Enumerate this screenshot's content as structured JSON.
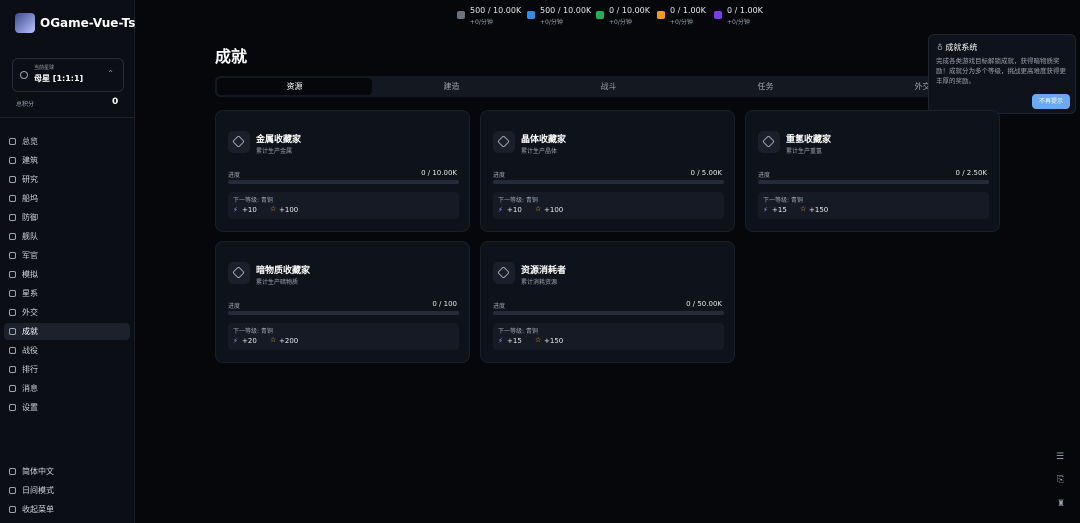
{
  "sidebar": {
    "logo": "OGame-Vue-Ts",
    "planet": {
      "label": "当前星球",
      "name": "母星 [1:1:1]"
    },
    "score": {
      "label": "总积分",
      "value": "0"
    },
    "nav": [
      "总览",
      "建筑",
      "研究",
      "船坞",
      "防御",
      "舰队",
      "军官",
      "模拟",
      "星系",
      "外交",
      "成就",
      "战役",
      "排行",
      "消息",
      "设置"
    ],
    "active": "成就",
    "footer": [
      "简体中文",
      "日间模式",
      "收起菜单"
    ]
  },
  "resources": [
    {
      "value": "500 / 10.00K",
      "rate": "+0/分钟",
      "color": "#6b7280"
    },
    {
      "value": "500 / 10.00K",
      "rate": "+0/分钟",
      "color": "#2f8fe8"
    },
    {
      "value": "0 / 10.00K",
      "rate": "+0/分钟",
      "color": "#1fae5a"
    },
    {
      "value": "0 / 1.00K",
      "rate": "+0/分钟",
      "color": "#f59e0b"
    },
    {
      "value": "0 / 1.00K",
      "rate": "+0/分钟",
      "color": "#7c3aed"
    }
  ],
  "page": {
    "title": "成就",
    "tabs": [
      "资源",
      "建造",
      "战斗",
      "任务",
      "外交"
    ],
    "cards": [
      {
        "name": "金属收藏家",
        "desc": "累计生产金属",
        "progress_label": "进度",
        "progress": "0 / 10.00K",
        "next": "下一等级: 青铜",
        "rewards": [
          "+10",
          "+100"
        ]
      },
      {
        "name": "晶体收藏家",
        "desc": "累计生产晶体",
        "progress_label": "进度",
        "progress": "0 / 5.00K",
        "next": "下一等级: 青铜",
        "rewards": [
          "+10",
          "+100"
        ]
      },
      {
        "name": "重氢收藏家",
        "desc": "累计生产重氢",
        "progress_label": "进度",
        "progress": "0 / 2.50K",
        "next": "下一等级: 青铜",
        "rewards": [
          "+15",
          "+150"
        ]
      },
      {
        "name": "暗物质收藏家",
        "desc": "累计生产暗物质",
        "progress_label": "进度",
        "progress": "0 / 100",
        "next": "下一等级: 青铜",
        "rewards": [
          "+20",
          "+200"
        ]
      },
      {
        "name": "资源消耗者",
        "desc": "累计消耗资源",
        "progress_label": "进度",
        "progress": "0 / 50.00K",
        "next": "下一等级: 青铜",
        "rewards": [
          "+15",
          "+150"
        ]
      }
    ]
  },
  "popup": {
    "title": "成就系统",
    "text": "完成各类游戏目标解锁成就，获得暗物质奖励！成就分为多个等级，挑战更高难度获得更丰厚的奖励。",
    "button": "不再提示"
  }
}
